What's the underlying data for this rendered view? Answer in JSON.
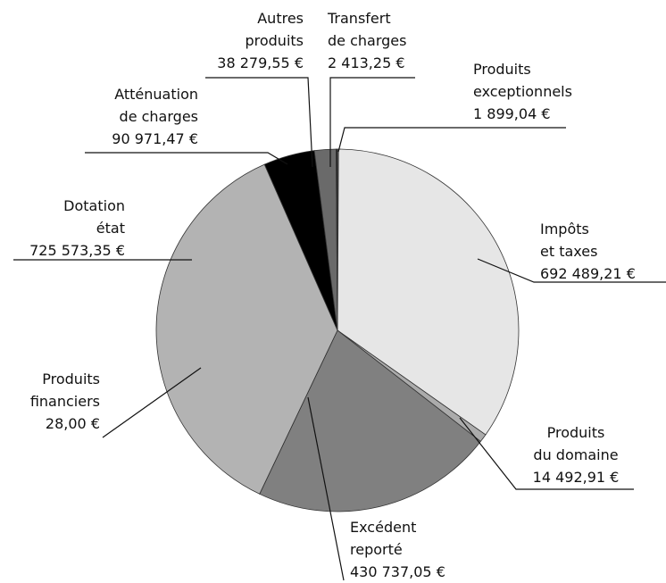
{
  "chart_data": {
    "type": "pie",
    "categories": [
      "Produits\nexceptionnels",
      "Impôts\net taxes",
      "Produits\ndu domaine",
      "Excédent\nreporté",
      "Produits\nfinanciers",
      "Dotation\nétat",
      "Atténuation\nde charges",
      "Autres\nproduits",
      "Transfert\nde charges"
    ],
    "values": [
      1899.04,
      692489.21,
      14492.91,
      430737.05,
      28.0,
      725573.35,
      90971.47,
      38279.55,
      2413.25
    ],
    "value_labels": [
      "1 899,04 €",
      "692 489,21 €",
      "14 492,91 €",
      "430 737,05 €",
      "28,00 €",
      "725 573,35 €",
      "90 971,47 €",
      "38 279,55 €",
      "2 413,25 €"
    ],
    "colors": [
      "#cfcfcf",
      "#e6e6e6",
      "#ababab",
      "#808080",
      "#555555",
      "#b3b3b3",
      "#000000",
      "#6a6a6a",
      "#222222"
    ]
  }
}
